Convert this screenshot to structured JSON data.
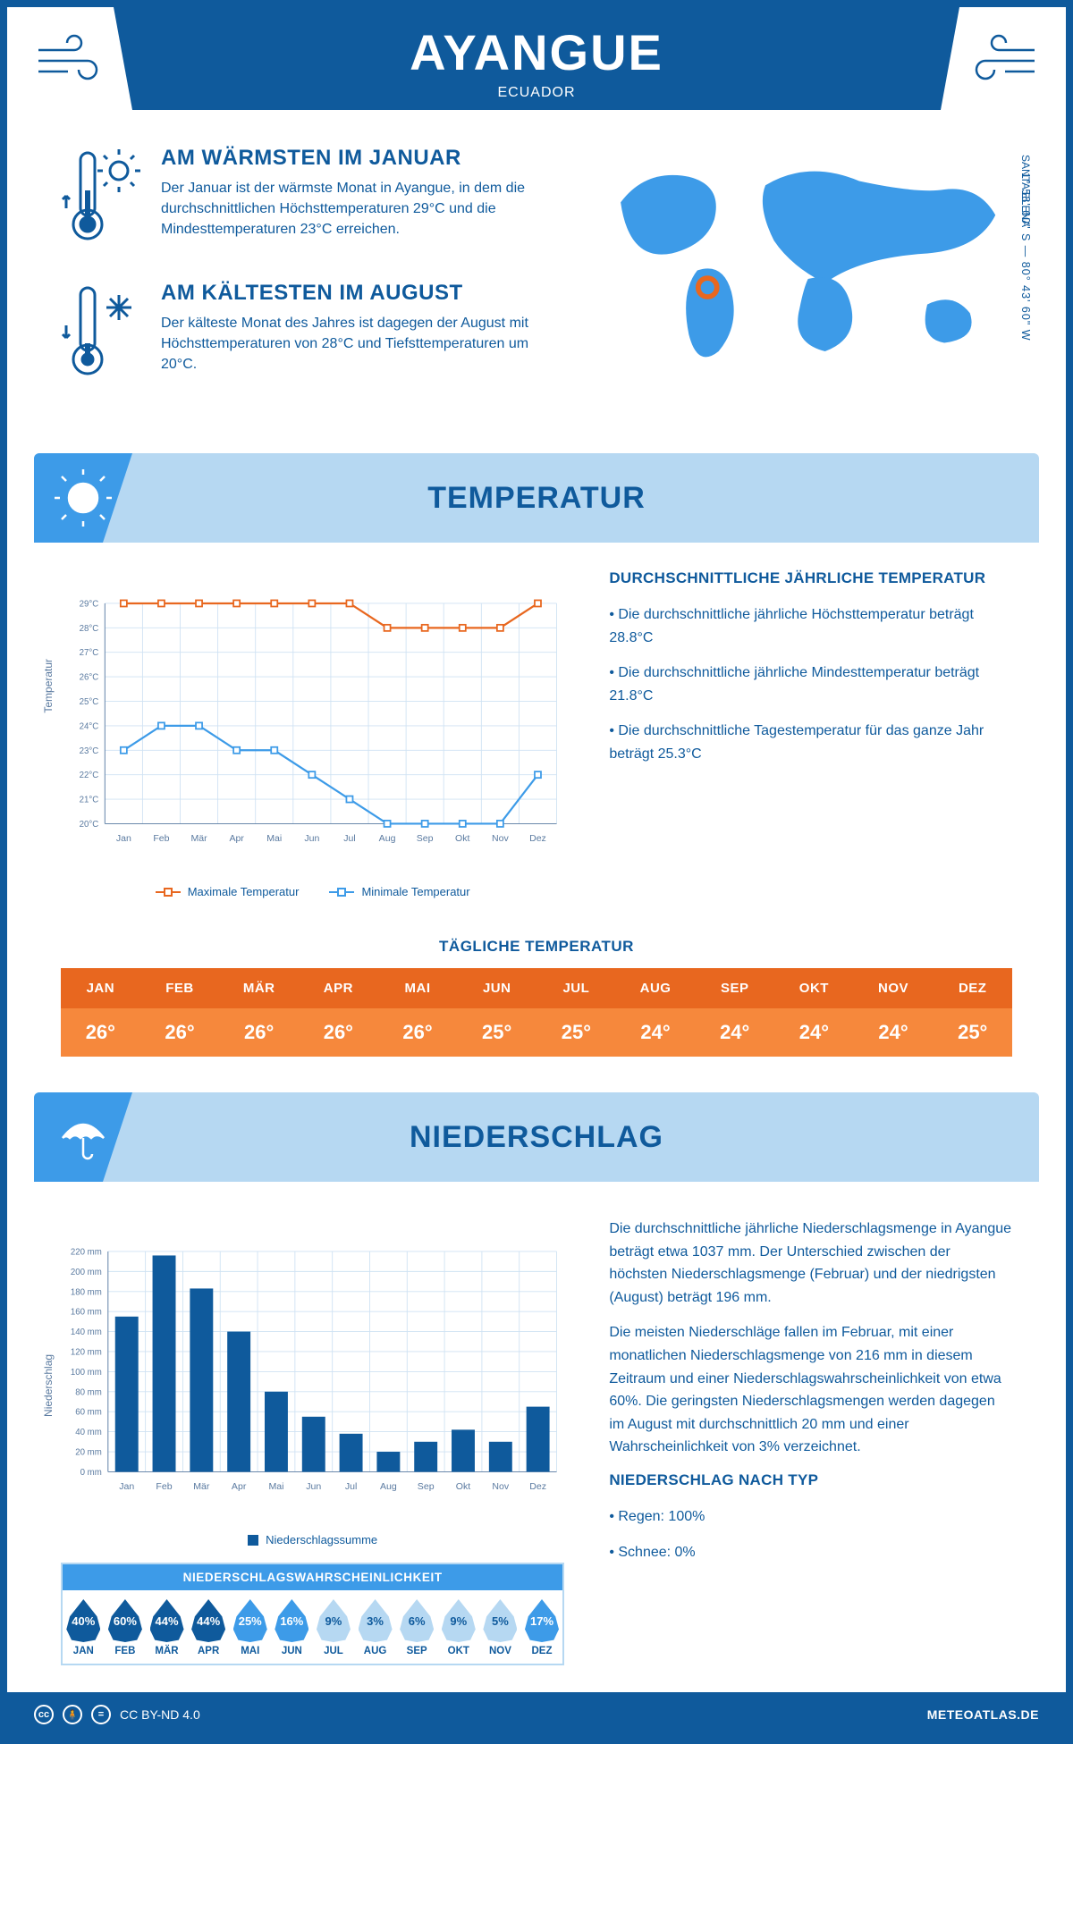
{
  "colors": {
    "brand": "#0f5a9c",
    "light_blue": "#b6d8f2",
    "mid_blue": "#3d9be8",
    "orange_head": "#e8671f",
    "orange_body": "#f6883c",
    "max_line": "#e8671f",
    "min_line": "#3d9be8",
    "bar_fill": "#0f5a9c",
    "grid": "#cfe2f3",
    "text": "#0f5a9c",
    "drop_dark": "#0f5a9c",
    "drop_mid": "#3d9be8",
    "drop_light": "#b6d8f2"
  },
  "header": {
    "title": "AYANGUE",
    "subtitle": "ECUADOR"
  },
  "facts": {
    "warm": {
      "title": "AM WÄRMSTEN IM JANUAR",
      "text": "Der Januar ist der wärmste Monat in Ayangue, in dem die durchschnittlichen Höchsttemperaturen 29°C und die Mindesttemperaturen 23°C erreichen."
    },
    "cold": {
      "title": "AM KÄLTESTEN IM AUGUST",
      "text": "Der kälteste Monat des Jahres ist dagegen der August mit Höchsttemperaturen von 28°C und Tiefsttemperaturen um 20°C."
    }
  },
  "map": {
    "coords": "1° 58' 60\" S — 80° 43' 60\" W",
    "region": "SANTA ELENA"
  },
  "months": [
    "Jan",
    "Feb",
    "Mär",
    "Apr",
    "Mai",
    "Jun",
    "Jul",
    "Aug",
    "Sep",
    "Okt",
    "Nov",
    "Dez"
  ],
  "months_upper": [
    "JAN",
    "FEB",
    "MÄR",
    "APR",
    "MAI",
    "JUN",
    "JUL",
    "AUG",
    "SEP",
    "OKT",
    "NOV",
    "DEZ"
  ],
  "temp_section": {
    "banner": "TEMPERATUR",
    "y_label": "Temperatur",
    "y_ticks": [
      "20°C",
      "21°C",
      "22°C",
      "23°C",
      "24°C",
      "25°C",
      "26°C",
      "27°C",
      "28°C",
      "29°C"
    ],
    "y_min": 20,
    "y_max": 29,
    "max_series": [
      29,
      29,
      29,
      29,
      29,
      29,
      29,
      28,
      28,
      28,
      28,
      29
    ],
    "min_series": [
      23,
      24,
      24,
      23,
      23,
      22,
      21,
      20,
      20,
      20,
      20,
      22
    ],
    "legend_max": "Maximale Temperatur",
    "legend_min": "Minimale Temperatur",
    "sidebar_title": "DURCHSCHNITTLICHE JÄHRLICHE TEMPERATUR",
    "sidebar_points": [
      "Die durchschnittliche jährliche Höchsttemperatur beträgt 28.8°C",
      "Die durchschnittliche jährliche Mindesttemperatur beträgt 21.8°C",
      "Die durchschnittliche Tagestemperatur für das ganze Jahr beträgt 25.3°C"
    ],
    "daily_title": "TÄGLICHE TEMPERATUR",
    "daily_values": [
      "26°",
      "26°",
      "26°",
      "26°",
      "26°",
      "25°",
      "25°",
      "24°",
      "24°",
      "24°",
      "24°",
      "25°"
    ]
  },
  "precip_section": {
    "banner": "NIEDERSCHLAG",
    "y_label": "Niederschlag",
    "y_min": 0,
    "y_max": 220,
    "y_step": 20,
    "values_mm": [
      155,
      216,
      183,
      140,
      80,
      55,
      38,
      20,
      30,
      42,
      30,
      65
    ],
    "legend": "Niederschlagssumme",
    "sidebar_p1": "Die durchschnittliche jährliche Niederschlagsmenge in Ayangue beträgt etwa 1037 mm. Der Unterschied zwischen der höchsten Niederschlagsmenge (Februar) und der niedrigsten (August) beträgt 196 mm.",
    "sidebar_p2": "Die meisten Niederschläge fallen im Februar, mit einer monatlichen Niederschlagsmenge von 216 mm in diesem Zeitraum und einer Niederschlagswahrscheinlichkeit von etwa 60%. Die geringsten Niederschlagsmengen werden dagegen im August mit durchschnittlich 20 mm und einer Wahrscheinlichkeit von 3% verzeichnet.",
    "type_title": "NIEDERSCHLAG NACH TYP",
    "type_points": [
      "Regen: 100%",
      "Schnee: 0%"
    ],
    "prob_title": "NIEDERSCHLAGSWAHRSCHEINLICHKEIT",
    "prob_values": [
      40,
      60,
      44,
      44,
      25,
      16,
      9,
      3,
      6,
      9,
      5,
      17
    ]
  },
  "footer": {
    "license": "CC BY-ND 4.0",
    "brand": "METEOATLAS.DE"
  }
}
